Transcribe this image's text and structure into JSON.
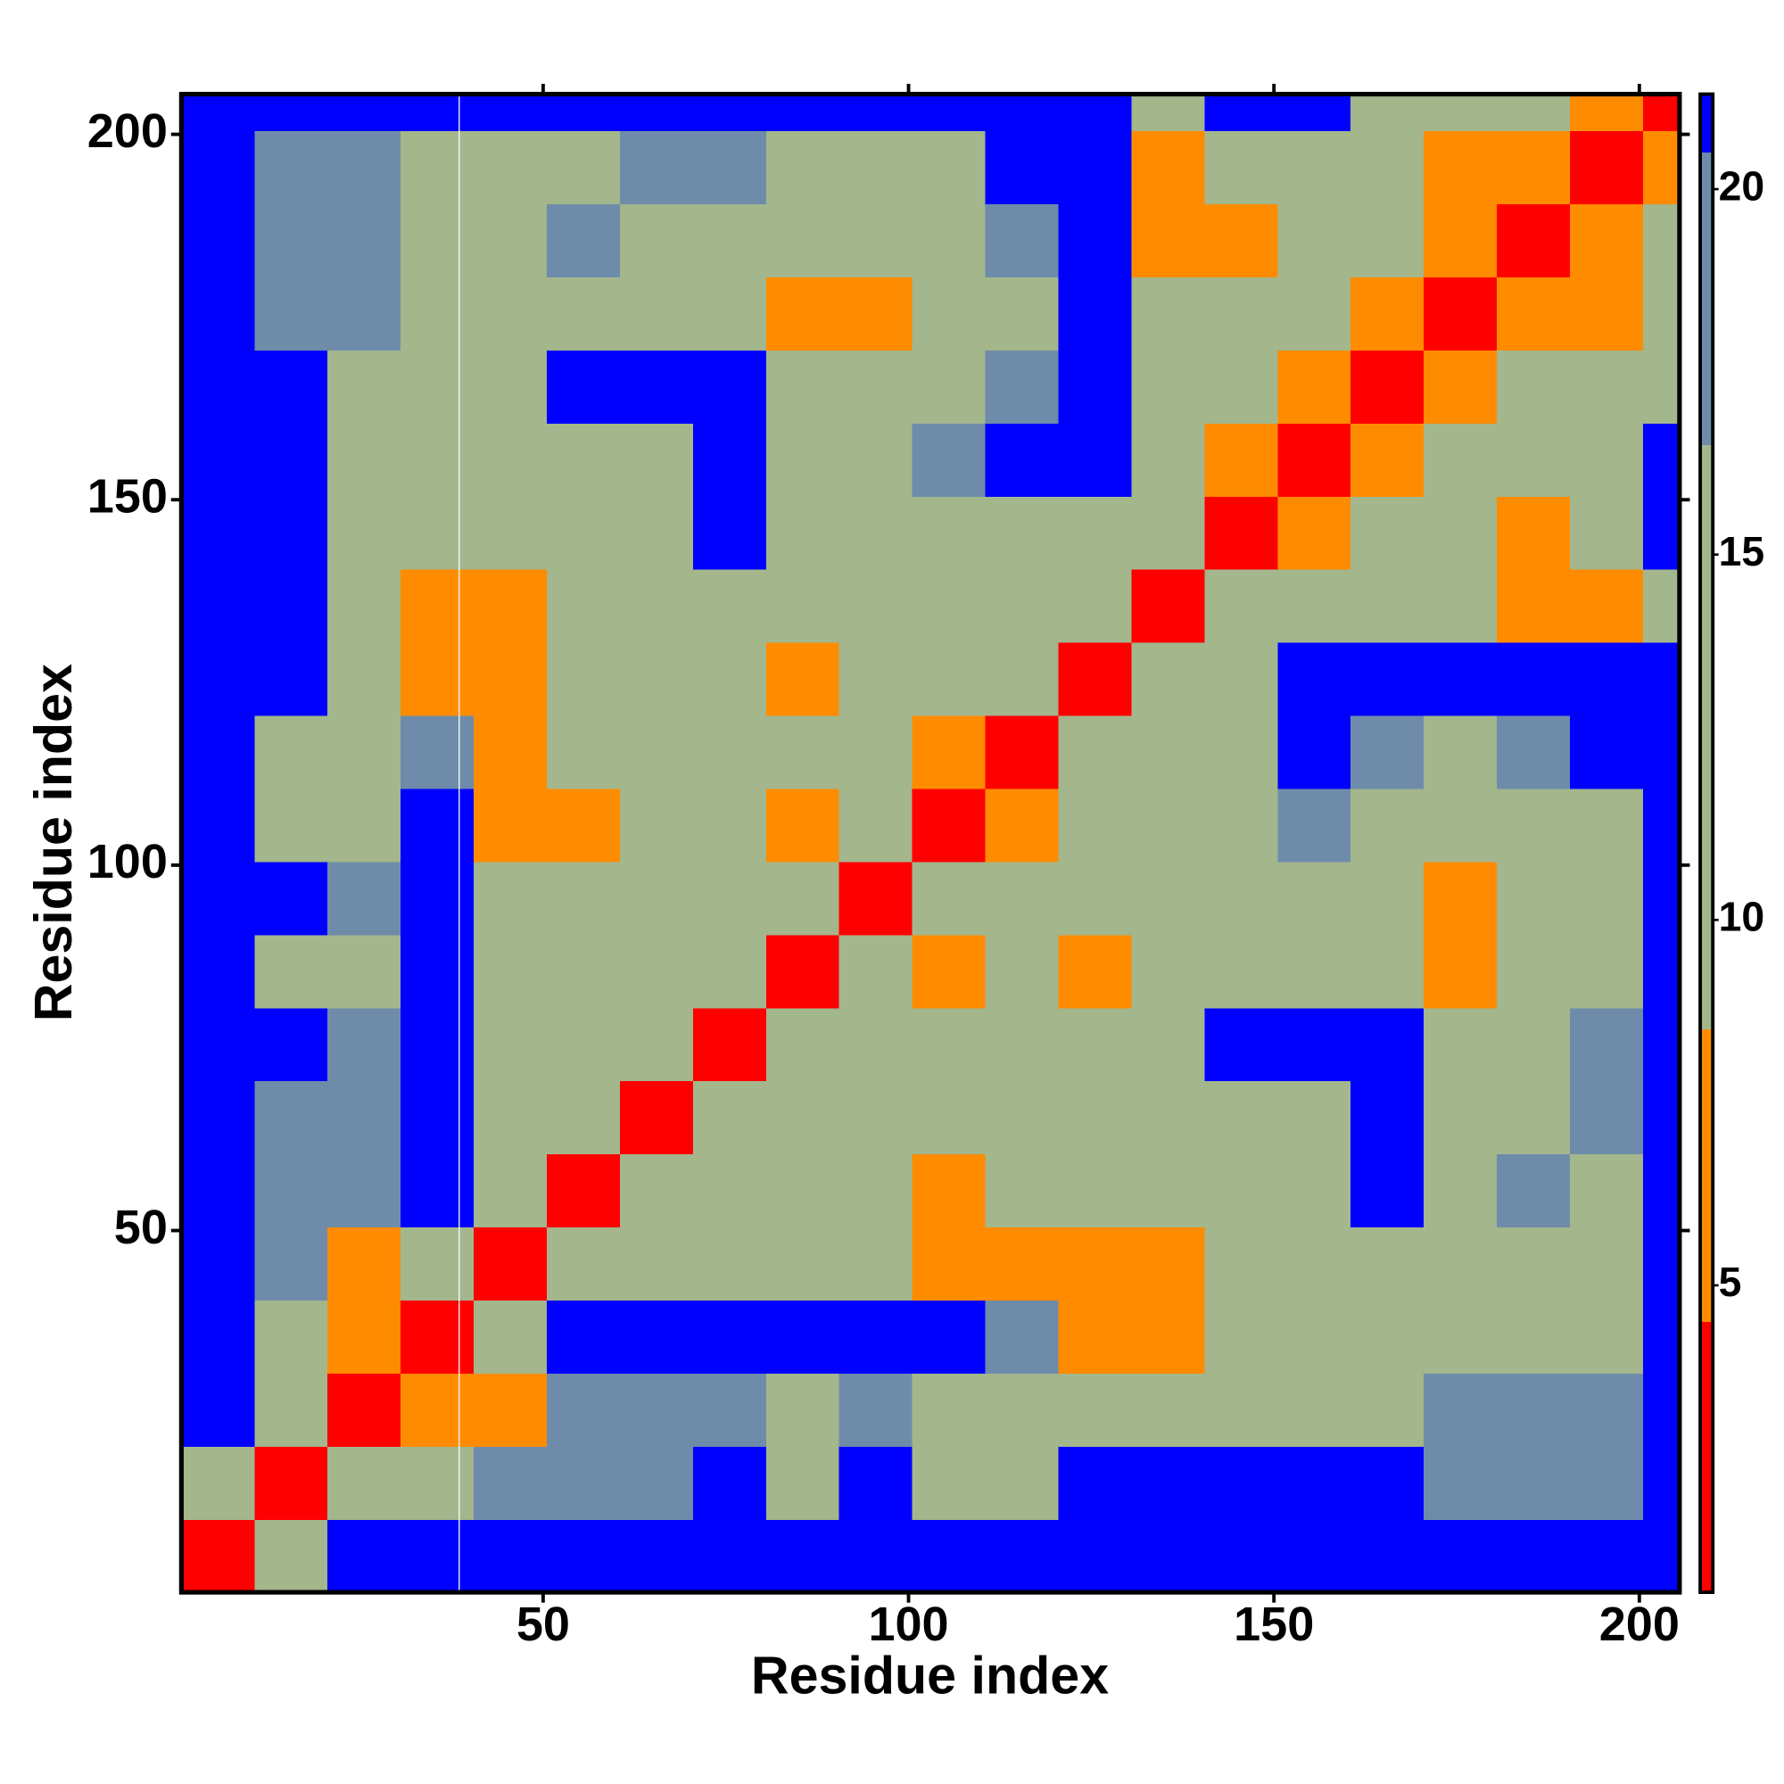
{
  "chart_data": {
    "type": "heatmap",
    "x_label": "Residue index",
    "y_label": "Residue index",
    "xlim": [
      0.5,
      205.5
    ],
    "ylim": [
      0.5,
      205.5
    ],
    "xticks": [
      50,
      100,
      150,
      200
    ],
    "yticks": [
      50,
      100,
      150,
      200
    ],
    "zlim": [
      0.8,
      21.3
    ],
    "zticks": [
      5,
      10,
      15,
      20
    ],
    "colorscale": [
      {
        "max": 4.5,
        "color": "#ff0000"
      },
      {
        "max": 8.5,
        "color": "#ff8c00"
      },
      {
        "max": 16.5,
        "color": "#a3b68c"
      },
      {
        "max": 20.5,
        "color": "#6e8caa"
      },
      {
        "color": "#0000ff"
      }
    ],
    "x_edges": [
      0.5,
      10.5,
      20.5,
      30.5,
      40.5,
      50.5,
      60.5,
      70.5,
      80.5,
      90.5,
      100.5,
      110.5,
      120.5,
      130.5,
      140.5,
      150.5,
      160.5,
      170.5,
      180.5,
      190.5,
      200.5,
      205.5
    ],
    "y_edges": [
      0.5,
      10.5,
      20.5,
      30.5,
      40.5,
      50.5,
      60.5,
      70.5,
      80.5,
      90.5,
      100.5,
      110.5,
      120.5,
      130.5,
      140.5,
      150.5,
      160.5,
      170.5,
      180.5,
      190.5,
      200.5,
      205.5
    ],
    "z": [
      [
        3,
        14,
        21,
        21,
        21,
        21,
        21,
        21,
        21,
        21,
        21,
        21,
        21,
        21,
        21,
        21,
        21,
        21,
        21,
        21,
        21
      ],
      [
        14,
        3,
        13,
        16,
        18,
        17,
        18,
        21,
        15,
        21,
        15,
        15,
        21,
        21,
        21,
        21,
        21,
        17,
        17,
        17,
        21
      ],
      [
        21,
        13,
        3,
        6,
        7,
        17,
        17,
        18,
        14,
        18,
        16,
        15,
        14,
        14,
        15,
        15,
        16,
        17,
        17,
        17,
        21
      ],
      [
        21,
        16,
        6,
        3,
        10,
        21,
        21,
        21,
        21,
        21,
        21,
        17,
        8,
        6,
        14,
        13,
        15,
        16,
        16,
        16,
        21
      ],
      [
        21,
        18,
        7,
        10,
        3,
        9,
        12,
        14,
        14,
        14,
        7,
        8,
        6,
        8,
        14,
        16,
        15,
        15,
        16,
        14,
        21
      ],
      [
        21,
        17,
        17,
        21,
        9,
        3,
        11,
        14,
        14,
        12,
        7,
        10,
        11,
        12,
        13,
        15,
        21,
        16,
        17,
        15,
        21
      ],
      [
        21,
        18,
        17,
        21,
        12,
        11,
        3,
        10,
        12,
        14,
        13,
        12,
        9,
        14,
        14,
        15,
        21,
        15,
        15,
        17,
        21
      ],
      [
        21,
        21,
        18,
        21,
        14,
        14,
        10,
        3,
        9,
        12,
        13,
        10,
        9,
        16,
        21,
        21,
        21,
        14,
        15,
        17,
        21
      ],
      [
        21,
        15,
        14,
        21,
        14,
        14,
        12,
        9,
        3,
        10,
        7,
        9,
        8,
        13,
        14,
        15,
        16,
        6,
        13,
        13,
        21
      ],
      [
        21,
        21,
        18,
        21,
        14,
        12,
        14,
        12,
        10,
        3,
        9,
        11,
        13,
        13,
        15,
        15,
        16,
        7,
        12,
        12,
        21
      ],
      [
        21,
        15,
        16,
        21,
        7,
        7,
        13,
        13,
        7,
        9,
        3,
        8,
        10,
        14,
        16,
        17,
        13,
        10,
        15,
        14,
        21
      ],
      [
        21,
        15,
        15,
        17,
        8,
        10,
        12,
        10,
        9,
        11,
        8,
        3,
        9,
        12,
        16,
        21,
        17,
        12,
        17,
        21,
        21
      ],
      [
        21,
        21,
        14,
        8,
        6,
        11,
        9,
        9,
        8,
        13,
        10,
        9,
        3,
        10,
        15,
        21,
        21,
        21,
        21,
        21,
        21
      ],
      [
        21,
        21,
        14,
        6,
        8,
        12,
        14,
        16,
        13,
        13,
        14,
        12,
        10,
        3,
        10,
        13,
        13,
        12,
        7,
        7,
        15
      ],
      [
        21,
        21,
        15,
        14,
        14,
        13,
        14,
        21,
        14,
        15,
        16,
        16,
        15,
        10,
        3,
        8,
        11,
        12,
        8,
        9,
        21
      ],
      [
        21,
        21,
        15,
        13,
        16,
        15,
        15,
        21,
        15,
        15,
        17,
        21,
        21,
        13,
        8,
        3,
        7,
        11,
        13,
        12,
        21
      ],
      [
        21,
        21,
        16,
        15,
        15,
        21,
        21,
        21,
        16,
        16,
        13,
        17,
        21,
        13,
        11,
        7,
        3,
        8,
        12,
        10,
        15
      ],
      [
        21,
        17,
        17,
        16,
        15,
        16,
        15,
        14,
        6,
        7,
        10,
        12,
        21,
        12,
        12,
        11,
        8,
        3,
        5,
        7,
        14
      ],
      [
        21,
        17,
        17,
        16,
        16,
        17,
        15,
        15,
        13,
        12,
        15,
        17,
        21,
        7,
        8,
        13,
        12,
        5,
        3,
        7,
        14
      ],
      [
        21,
        17,
        17,
        16,
        14,
        15,
        17,
        17,
        13,
        12,
        14,
        21,
        21,
        7,
        9,
        12,
        10,
        7,
        7,
        3,
        8
      ],
      [
        21,
        21,
        21,
        21,
        21,
        21,
        21,
        21,
        21,
        21,
        21,
        21,
        21,
        15,
        21,
        21,
        15,
        14,
        14,
        8,
        3
      ]
    ]
  }
}
